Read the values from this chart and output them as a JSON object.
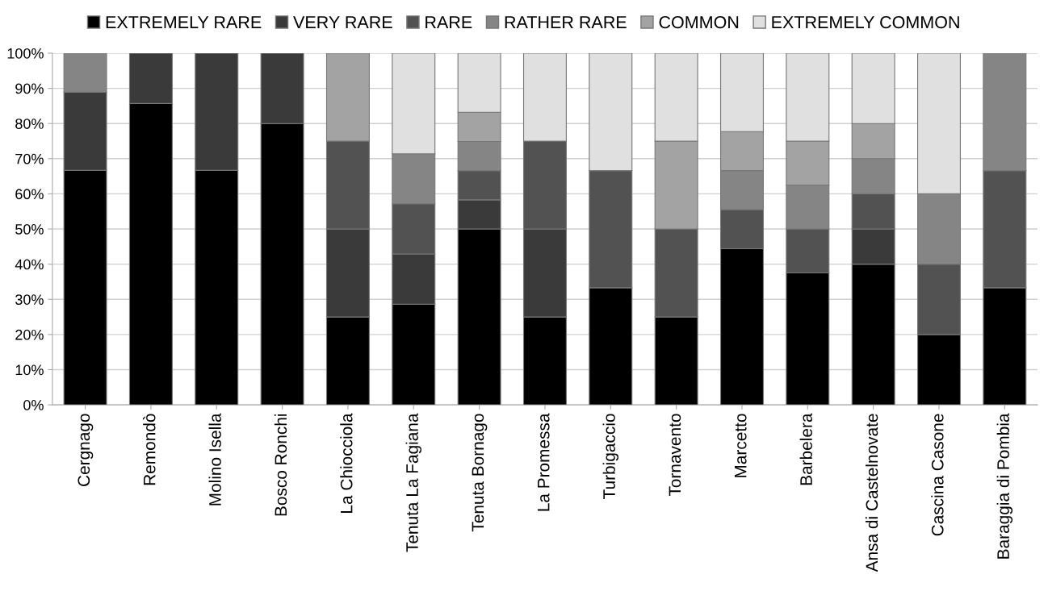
{
  "chart_data": {
    "type": "bar",
    "stacked": true,
    "categories": [
      "Cergnago",
      "Remondò",
      "Molino Isella",
      "Bosco Ronchi",
      "La Chiocciola",
      "Tenuta La Fagiana",
      "Tenuta Bornago",
      "La Promessa",
      "Turbigaccio",
      "Tornavento",
      "Marcetto",
      "Barbelera",
      "Ansa di Castelnovate",
      "Cascina Casone",
      "Baraggia di Pombia"
    ],
    "series": [
      {
        "name": "EXTREMELY RARE",
        "color": "#000000",
        "values": [
          66.7,
          85.7,
          66.7,
          80,
          25,
          28.6,
          50,
          25,
          33.3,
          25,
          44.4,
          37.5,
          40,
          20,
          33.3
        ]
      },
      {
        "name": "VERY RARE",
        "color": "#3a3a3a",
        "values": [
          22.2,
          14.3,
          33.3,
          20,
          25,
          14.3,
          8.3,
          25,
          null,
          null,
          null,
          null,
          10,
          null,
          null
        ]
      },
      {
        "name": "RARE",
        "color": "#525252",
        "values": [
          null,
          null,
          null,
          null,
          25,
          14.3,
          8.3,
          25,
          33.3,
          25,
          11.1,
          12.5,
          10,
          20,
          33.3
        ]
      },
      {
        "name": "RATHER RARE",
        "color": "#858585",
        "values": [
          11.1,
          null,
          null,
          null,
          null,
          14.2,
          8.3,
          null,
          null,
          null,
          11.1,
          12.5,
          10,
          20,
          33.4
        ]
      },
      {
        "name": "COMMON",
        "color": "#a3a3a3",
        "values": [
          null,
          null,
          null,
          null,
          25,
          null,
          8.3,
          null,
          null,
          25,
          11.1,
          12.5,
          10,
          null,
          null
        ]
      },
      {
        "name": "EXTREMELY COMMON",
        "color": "#e0e0e0",
        "values": [
          null,
          null,
          null,
          null,
          null,
          28.6,
          16.8,
          25,
          33.4,
          25,
          22.3,
          25,
          20,
          40,
          null
        ]
      }
    ],
    "ylim": [
      0,
      100
    ],
    "yticks": [
      {
        "value": 0,
        "label": "0%"
      },
      {
        "value": 10,
        "label": "10%"
      },
      {
        "value": 20,
        "label": "20%"
      },
      {
        "value": 30,
        "label": "30%"
      },
      {
        "value": 40,
        "label": "40%"
      },
      {
        "value": 50,
        "label": "50%"
      },
      {
        "value": 60,
        "label": "60%"
      },
      {
        "value": 70,
        "label": "70%"
      },
      {
        "value": 80,
        "label": "80%"
      },
      {
        "value": 90,
        "label": "90%"
      },
      {
        "value": 100,
        "label": "100%"
      }
    ],
    "grid": "y",
    "legend": "top"
  }
}
